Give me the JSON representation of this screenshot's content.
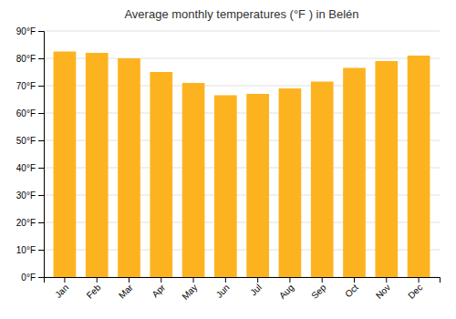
{
  "chart_data": {
    "type": "bar",
    "title": "Average monthly temperatures (°F ) in Belén",
    "categories": [
      "Jan",
      "Feb",
      "Mar",
      "Apr",
      "May",
      "Jun",
      "Jul",
      "Aug",
      "Sep",
      "Oct",
      "Nov",
      "Dec"
    ],
    "values": [
      82.5,
      82.0,
      80.0,
      75.0,
      71.0,
      66.5,
      67.0,
      69.0,
      71.5,
      76.5,
      79.0,
      81.0
    ],
    "color": "#FDB320",
    "ylim": [
      0,
      90
    ],
    "yticks": [
      {
        "value": 0,
        "label": "0°F"
      },
      {
        "value": 10,
        "label": "10°F"
      },
      {
        "value": 20,
        "label": "20°F"
      },
      {
        "value": 30,
        "label": "30°F"
      },
      {
        "value": 40,
        "label": "40°F"
      },
      {
        "value": 50,
        "label": "50°F"
      },
      {
        "value": 60,
        "label": "60°F"
      },
      {
        "value": 70,
        "label": "70°F"
      },
      {
        "value": 80,
        "label": "80°F"
      },
      {
        "value": 90,
        "label": "90°F"
      }
    ],
    "grid": true
  }
}
